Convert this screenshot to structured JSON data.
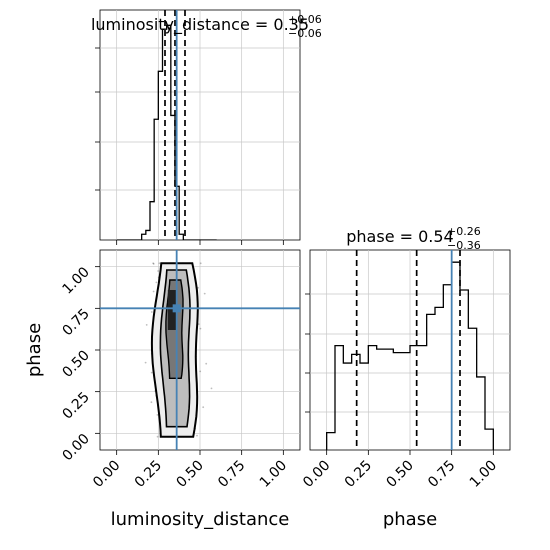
{
  "chart_data": {
    "type": "corner",
    "parameters": [
      {
        "name": "luminosity_distance",
        "title": {
          "prefix": "luminosity_distance = 0.35",
          "plus": "+0.06",
          "minus": "−0.06"
        },
        "axis_label": "luminosity_distance",
        "range": [
          -0.1,
          1.1
        ],
        "ticks": [
          "0.00",
          "0.25",
          "0.50",
          "0.75",
          "1.00"
        ],
        "tick_values": [
          0,
          0.25,
          0.5,
          0.75,
          1.0
        ],
        "quantiles": [
          0.29,
          0.35,
          0.41
        ],
        "truth": 0.36,
        "hist_bins": [
          0.0,
          0.025,
          0.05,
          0.075,
          0.1,
          0.125,
          0.15,
          0.175,
          0.2,
          0.225,
          0.25,
          0.275,
          0.3,
          0.325,
          0.35,
          0.375,
          0.4,
          0.425,
          0.45,
          0.475,
          0.5,
          0.525,
          0.55,
          0.575,
          0.6
        ],
        "hist_counts": [
          0,
          0,
          0,
          0,
          0,
          0,
          3,
          5,
          20,
          63,
          88,
          110,
          112,
          65,
          28,
          3,
          0,
          0,
          0,
          0,
          0,
          0,
          0,
          0
        ],
        "hist_ymax": 120
      },
      {
        "name": "phase",
        "title": {
          "prefix": "phase = 0.54",
          "plus": "+0.26",
          "minus": "−0.36"
        },
        "axis_label": "phase",
        "range": [
          -0.1,
          1.1
        ],
        "ticks": [
          "0.00",
          "0.25",
          "0.50",
          "0.75",
          "1.00"
        ],
        "tick_values": [
          0,
          0.25,
          0.5,
          0.75,
          1.0
        ],
        "quantiles": [
          0.18,
          0.54,
          0.8
        ],
        "truth": 0.75,
        "hist_bins": [
          0.0,
          0.05,
          0.1,
          0.15,
          0.2,
          0.25,
          0.3,
          0.35,
          0.4,
          0.45,
          0.5,
          0.55,
          0.6,
          0.65,
          0.7,
          0.75,
          0.8,
          0.85,
          0.9,
          0.95,
          1.0
        ],
        "hist_counts": [
          10,
          60,
          50,
          55,
          50,
          60,
          58,
          58,
          56,
          56,
          60,
          60,
          78,
          82,
          95,
          108,
          92,
          70,
          42,
          12
        ],
        "hist_ymax": 115
      }
    ],
    "truth_color": "#4682b4",
    "grid": true
  }
}
